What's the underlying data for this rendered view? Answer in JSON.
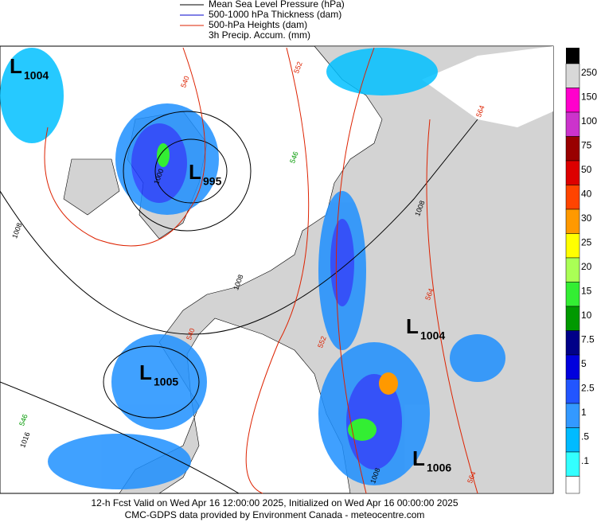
{
  "legend": {
    "items": [
      {
        "label": "Mean Sea Level Pressure (hPa)",
        "color": "#000000"
      },
      {
        "label": "500-1000 hPa Thickness (dam)",
        "color": "#0000cc"
      },
      {
        "label": "500-hPa Heights (dam)",
        "color": "#dd2200"
      },
      {
        "label": "3h Precip. Accum. (mm)",
        "color": null
      }
    ]
  },
  "colorbar": {
    "segments": [
      {
        "label": "250",
        "color": "#d8d8d8"
      },
      {
        "label": "150",
        "color": "#ff00cc"
      },
      {
        "label": "100",
        "color": "#cc33cc"
      },
      {
        "label": "75",
        "color": "#990000"
      },
      {
        "label": "50",
        "color": "#dd0000"
      },
      {
        "label": "40",
        "color": "#ff4400"
      },
      {
        "label": "30",
        "color": "#ff9900"
      },
      {
        "label": "25",
        "color": "#ffff00"
      },
      {
        "label": "20",
        "color": "#aaff55"
      },
      {
        "label": "15",
        "color": "#33ee33"
      },
      {
        "label": "10",
        "color": "#009900"
      },
      {
        "label": "7.5",
        "color": "#000088"
      },
      {
        "label": "5",
        "color": "#0000dd"
      },
      {
        "label": "2.5",
        "color": "#2255ff"
      },
      {
        "label": "1",
        "color": "#3399ff"
      },
      {
        "label": ".5",
        "color": "#00bbff"
      },
      {
        "label": ".1",
        "color": "#33ffff"
      }
    ]
  },
  "lows": [
    {
      "letter": "L",
      "pressure": "1004"
    },
    {
      "letter": "L",
      "pressure": "995"
    },
    {
      "letter": "L",
      "pressure": "1005"
    },
    {
      "letter": "L",
      "pressure": "1004"
    },
    {
      "letter": "L",
      "pressure": "1006"
    }
  ],
  "contour_labels": [
    "540",
    "552",
    "546",
    "564",
    "1008",
    "1008",
    "1008",
    "1000",
    "540",
    "552",
    "564",
    "546",
    "1016",
    "1008",
    "564"
  ],
  "footer": {
    "line1": "12-h Fcst Valid on Wed Apr 16 12:00:00 2025, Initialized on Wed Apr 16 00:00:00 2025",
    "line2": "CMC-GDPS data provided by Environment Canada - meteocentre.com"
  }
}
